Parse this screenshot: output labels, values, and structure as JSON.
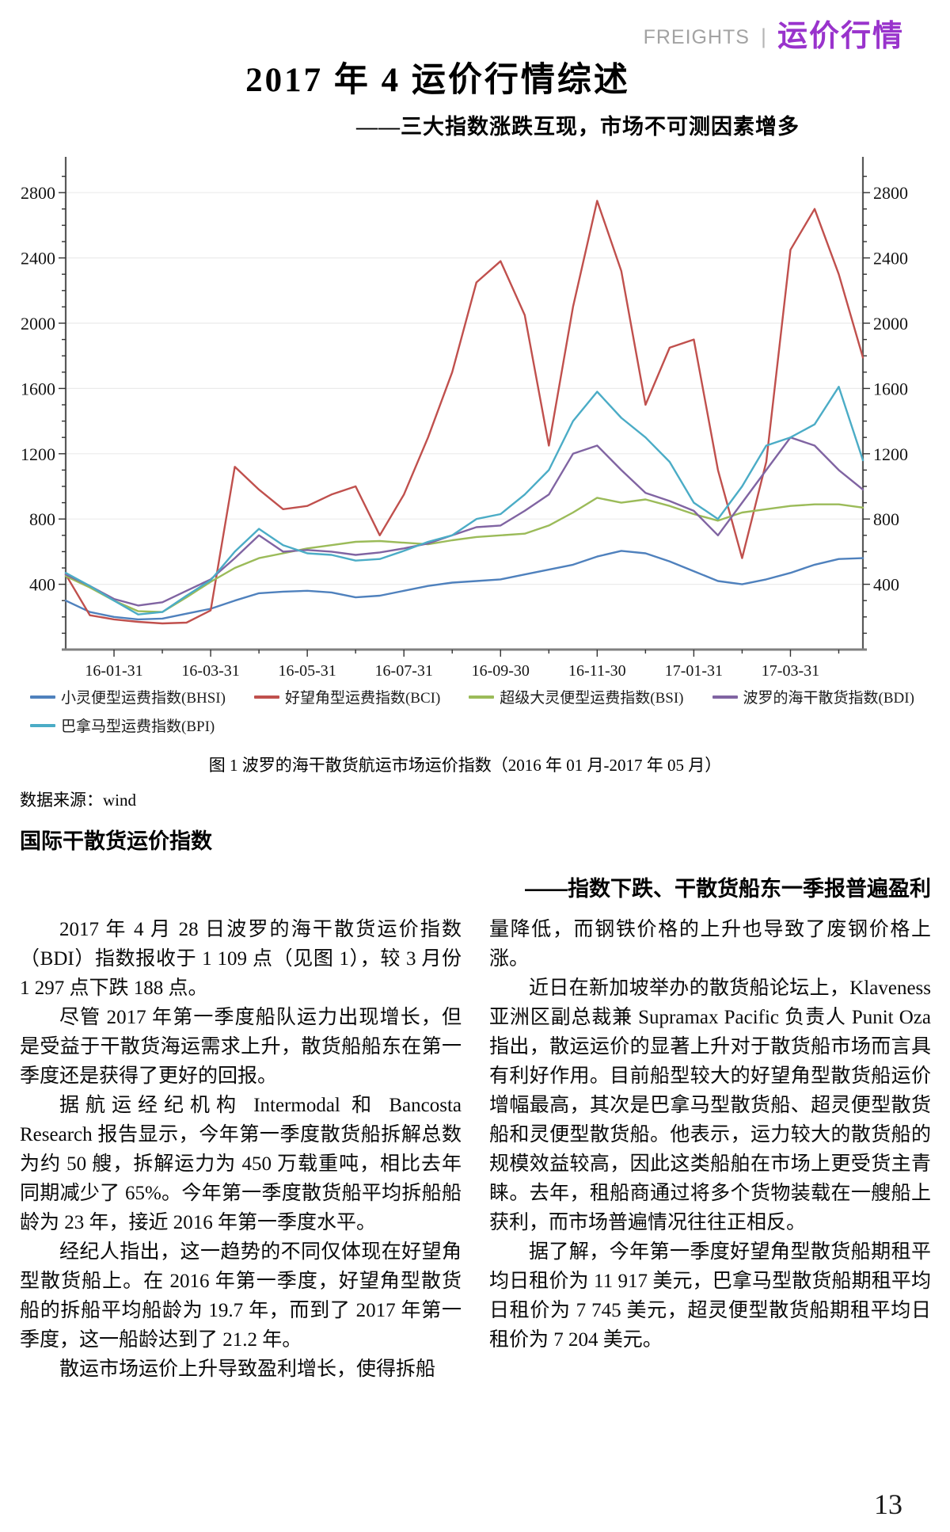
{
  "page": {
    "header": {
      "eyebrow_en": "FREIGHTS",
      "separator": "|",
      "eyebrow_zh": "运价行情",
      "accent_color": "#9933cc"
    },
    "title": "2017 年 4 运价行情综述",
    "subtitle": "——三大指数涨跌互现，市场不可测因素增多",
    "caption": "图 1 波罗的海干散货航运市场运价指数（2016 年 01 月-2017 年 05 月）",
    "source": "数据来源：wind",
    "left_heading": "国际干散货运价指数",
    "right_heading": "——指数下跌、干散货船东一季报普遍盈利",
    "page_number": "13",
    "left_paragraphs": [
      {
        "indent": true,
        "text": "2017 年 4 月 28 日波罗的海干散货运价指数（BDI）指数报收于 1 109 点（见图 1），较 3 月份 1 297 点下跌 188 点。"
      },
      {
        "indent": true,
        "text": "尽管 2017 年第一季度船队运力出现增长，但是受益于干散货海运需求上升，散货船船东在第一季度还是获得了更好的回报。"
      },
      {
        "indent": true,
        "text": "据航运经纪机构 Intermodal 和 Bancosta Research 报告显示，今年第一季度散货船拆解总数为约 50 艘，拆解运力为 450 万载重吨，相比去年同期减少了 65%。今年第一季度散货船平均拆船船龄为 23 年，接近 2016 年第一季度水平。"
      },
      {
        "indent": true,
        "text": "经纪人指出，这一趋势的不同仅体现在好望角型散货船上。在 2016 年第一季度，好望角型散货船的拆船平均船龄为 19.7 年，而到了 2017 年第一季度，这一船龄达到了 21.2 年。"
      },
      {
        "indent": true,
        "text": "散运市场运价上升导致盈利增长，使得拆船"
      }
    ],
    "right_paragraphs": [
      {
        "indent": false,
        "text": "量降低，而钢铁价格的上升也导致了废钢价格上涨。"
      },
      {
        "indent": true,
        "text": "近日在新加坡举办的散货船论坛上，Klaveness 亚洲区副总裁兼 Supramax Pacific 负责人 Punit Oza 指出，散运运价的显著上升对于散货船市场而言具有利好作用。目前船型较大的好望角型散货船运价增幅最高，其次是巴拿马型散货船、超灵便型散货船和灵便型散货船。他表示，运力较大的散货船的规模效益较高，因此这类船舶在市场上更受货主青睐。去年，租船商通过将多个货物装载在一艘船上获利，而市场普遍情况往往正相反。"
      },
      {
        "indent": true,
        "text": "据了解，今年第一季度好望角型散货船期租平均日租价为 11 917 美元，巴拿马型散货船期租平均日租价为 7 745 美元，超灵便型散货船期租平均日租价为 7 204 美元。"
      }
    ]
  },
  "chart_data": {
    "type": "line",
    "title": "",
    "xlabel": "",
    "ylabel": "",
    "ylim": [
      0,
      3000
    ],
    "y_ticks": [
      400,
      800,
      1200,
      1600,
      2000,
      2400,
      2800
    ],
    "y_minor_step": 100,
    "grid": "horizontal-light",
    "legend_position": "bottom-left-two-rows",
    "legend_row_break": 4,
    "x": [
      "2016-01-01",
      "2016-01-15",
      "2016-02-01",
      "2016-02-15",
      "2016-03-01",
      "2016-03-15",
      "2016-04-01",
      "2016-04-15",
      "2016-05-01",
      "2016-05-15",
      "2016-06-01",
      "2016-06-15",
      "2016-07-01",
      "2016-07-15",
      "2016-08-01",
      "2016-08-15",
      "2016-09-01",
      "2016-09-15",
      "2016-10-01",
      "2016-10-15",
      "2016-11-01",
      "2016-11-15",
      "2016-12-01",
      "2016-12-15",
      "2017-01-01",
      "2017-01-15",
      "2017-02-01",
      "2017-02-15",
      "2017-03-01",
      "2017-03-15",
      "2017-04-01",
      "2017-04-15",
      "2017-05-01",
      "2017-05-15"
    ],
    "x_tick_labels": [
      "16-01-31",
      "16-03-31",
      "16-05-31",
      "16-07-31",
      "16-09-30",
      "16-11-30",
      "17-01-31",
      "17-03-31"
    ],
    "x_tick_indices": [
      2,
      6,
      10,
      14,
      18,
      22,
      26,
      30
    ],
    "series": [
      {
        "name": "小灵便型运费指数(BHSI)",
        "color": "#4F81BD",
        "values": [
          300,
          230,
          200,
          185,
          190,
          220,
          250,
          300,
          345,
          355,
          360,
          350,
          320,
          330,
          360,
          390,
          410,
          420,
          430,
          460,
          490,
          520,
          570,
          605,
          590,
          540,
          480,
          420,
          400,
          430,
          470,
          520,
          555,
          560
        ]
      },
      {
        "name": "好望角型运费指数(BCI)",
        "color": "#C0504D",
        "values": [
          460,
          210,
          185,
          170,
          160,
          165,
          240,
          1120,
          980,
          860,
          880,
          950,
          1000,
          700,
          950,
          1300,
          1700,
          2250,
          2380,
          2050,
          1250,
          2100,
          2750,
          2320,
          1500,
          1850,
          1900,
          1100,
          560,
          1150,
          2450,
          2700,
          2300,
          1790
        ]
      },
      {
        "name": "超级大灵便型运费指数(BSI)",
        "color": "#9BBB59",
        "values": [
          450,
          380,
          300,
          235,
          230,
          320,
          415,
          500,
          560,
          590,
          620,
          640,
          660,
          665,
          655,
          645,
          670,
          690,
          700,
          710,
          760,
          840,
          930,
          900,
          920,
          880,
          830,
          790,
          840,
          860,
          880,
          890,
          890,
          870
        ]
      },
      {
        "name": "波罗的海干散货指数(BDI)",
        "color": "#8064A2",
        "values": [
          460,
          390,
          310,
          270,
          290,
          360,
          430,
          560,
          700,
          600,
          610,
          600,
          580,
          595,
          620,
          650,
          700,
          750,
          760,
          850,
          950,
          1200,
          1250,
          1100,
          960,
          910,
          850,
          700,
          900,
          1100,
          1300,
          1250,
          1100,
          980
        ]
      },
      {
        "name": "巴拿马型运费指数(BPI)",
        "color": "#4BACC6",
        "values": [
          470,
          390,
          300,
          215,
          230,
          330,
          425,
          600,
          740,
          640,
          590,
          580,
          545,
          555,
          605,
          660,
          700,
          800,
          830,
          950,
          1100,
          1400,
          1580,
          1420,
          1300,
          1150,
          900,
          800,
          1000,
          1250,
          1300,
          1380,
          1610,
          1160
        ]
      }
    ]
  }
}
